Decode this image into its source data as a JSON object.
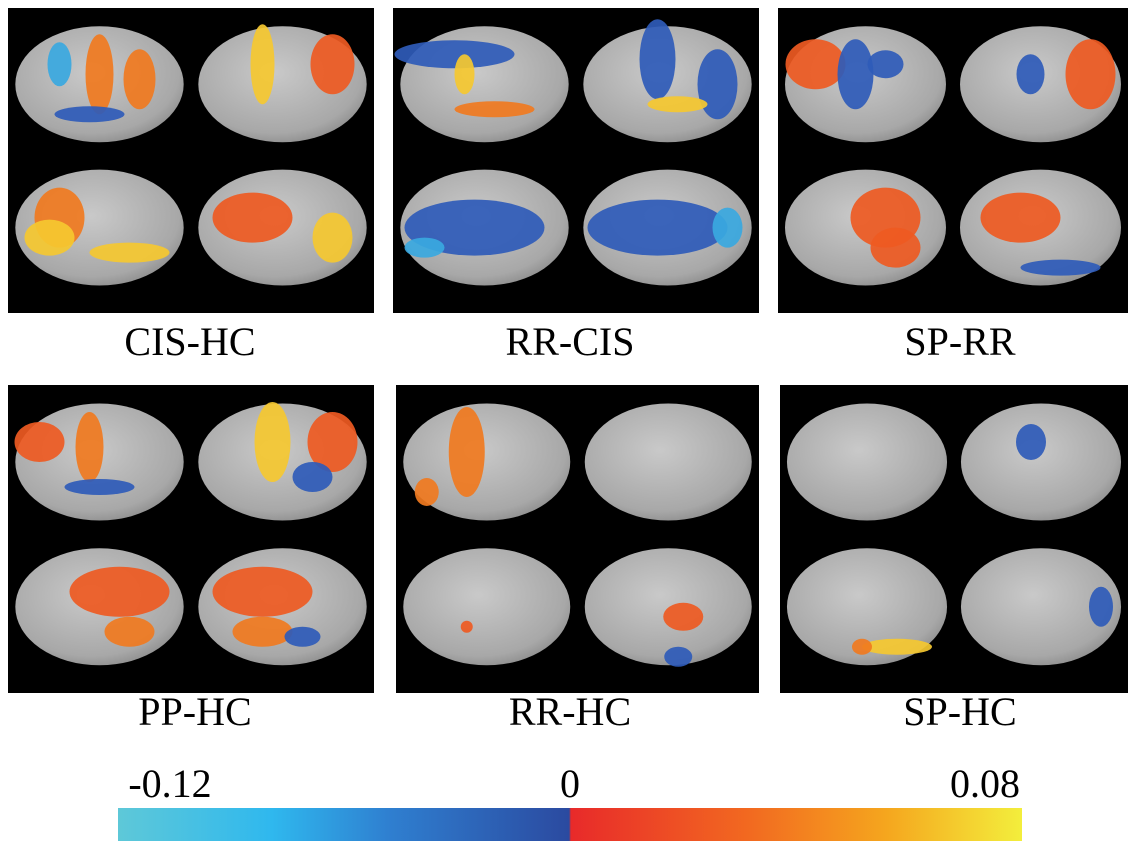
{
  "panels": [
    {
      "label": "CIS-HC"
    },
    {
      "label": "RR-CIS"
    },
    {
      "label": "SP-RR"
    },
    {
      "label": "PP-HC"
    },
    {
      "label": "RR-HC"
    },
    {
      "label": "SP-HC"
    }
  ],
  "colorbar": {
    "min_label": "-0.12",
    "mid_label": "0",
    "max_label": "0.08"
  }
}
